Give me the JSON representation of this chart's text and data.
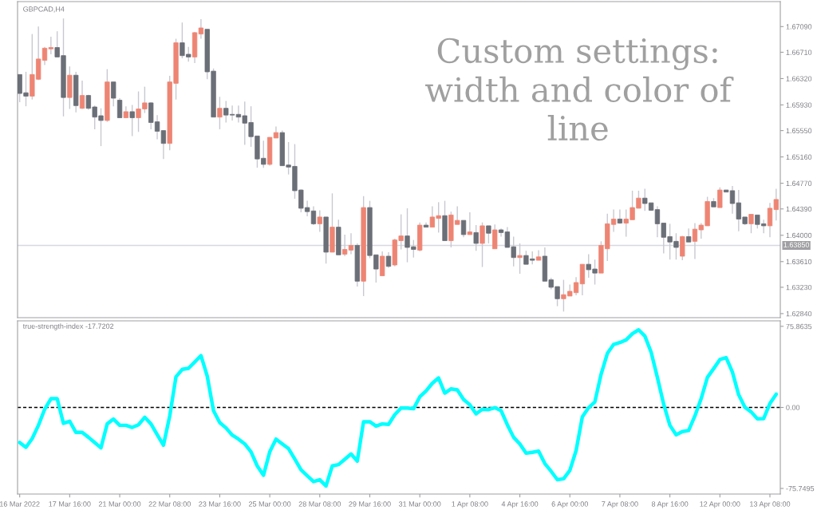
{
  "chart_data": [
    {
      "type": "candlestick",
      "tick_labels": "y",
      "annotations": [
        "GBPCAD,H4",
        "Custom settings:\nwidth and color of\nline"
      ],
      "ohlc": [
        [
          1.6638,
          1.6638,
          1.6597,
          1.661
        ],
        [
          1.6611,
          1.6642,
          1.6591,
          1.6606
        ],
        [
          1.6606,
          1.6698,
          1.6601,
          1.6638
        ],
        [
          1.6631,
          1.6709,
          1.663,
          1.6661
        ],
        [
          1.6659,
          1.6679,
          1.6652,
          1.6677
        ],
        [
          1.6676,
          1.6694,
          1.6668,
          1.6678
        ],
        [
          1.6678,
          1.6702,
          1.6664,
          1.6664
        ],
        [
          1.6666,
          1.6721,
          1.6576,
          1.6604
        ],
        [
          1.6604,
          1.665,
          1.6587,
          1.6637
        ],
        [
          1.6637,
          1.6642,
          1.6582,
          1.6592
        ],
        [
          1.6588,
          1.6629,
          1.6587,
          1.6607
        ],
        [
          1.6607,
          1.6608,
          1.6586,
          1.6588
        ],
        [
          1.659,
          1.6592,
          1.6557,
          1.6575
        ],
        [
          1.6577,
          1.6588,
          1.6532,
          1.657
        ],
        [
          1.657,
          1.6646,
          1.6568,
          1.6627
        ],
        [
          1.6627,
          1.6627,
          1.6591,
          1.6603
        ],
        [
          1.66,
          1.6603,
          1.6574,
          1.6574
        ],
        [
          1.6574,
          1.6591,
          1.6574,
          1.6583
        ],
        [
          1.6583,
          1.6593,
          1.6547,
          1.6574
        ],
        [
          1.6574,
          1.6613,
          1.6553,
          1.6587
        ],
        [
          1.6587,
          1.662,
          1.6581,
          1.6596
        ],
        [
          1.6596,
          1.6597,
          1.6557,
          1.6567
        ],
        [
          1.6568,
          1.6578,
          1.6542,
          1.6554
        ],
        [
          1.6555,
          1.6555,
          1.6513,
          1.6536
        ],
        [
          1.6536,
          1.6636,
          1.6526,
          1.6627
        ],
        [
          1.6625,
          1.6691,
          1.6601,
          1.6685
        ],
        [
          1.6685,
          1.6715,
          1.6662,
          1.6666
        ],
        [
          1.6668,
          1.6679,
          1.6657,
          1.6664
        ],
        [
          1.6664,
          1.6701,
          1.6655,
          1.67
        ],
        [
          1.6698,
          1.672,
          1.6691,
          1.6707
        ],
        [
          1.6705,
          1.6705,
          1.6631,
          1.6642
        ],
        [
          1.6643,
          1.6647,
          1.6575,
          1.6575
        ],
        [
          1.6575,
          1.6605,
          1.6557,
          1.6588
        ],
        [
          1.6588,
          1.6599,
          1.6567,
          1.6578
        ],
        [
          1.6579,
          1.6592,
          1.657,
          1.6578
        ],
        [
          1.6579,
          1.6592,
          1.6567,
          1.6575
        ],
        [
          1.6577,
          1.6598,
          1.6534,
          1.6566
        ],
        [
          1.6567,
          1.6591,
          1.6531,
          1.6546
        ],
        [
          1.6547,
          1.6547,
          1.65,
          1.6513
        ],
        [
          1.6514,
          1.654,
          1.65,
          1.6505
        ],
        [
          1.6505,
          1.6545,
          1.6503,
          1.6545
        ],
        [
          1.6544,
          1.6561,
          1.6544,
          1.6552
        ],
        [
          1.6552,
          1.6555,
          1.6503,
          1.6503
        ],
        [
          1.6504,
          1.6538,
          1.649,
          1.6501
        ],
        [
          1.6502,
          1.6535,
          1.6454,
          1.6466
        ],
        [
          1.6467,
          1.6468,
          1.6434,
          1.644
        ],
        [
          1.6441,
          1.6451,
          1.6428,
          1.6435
        ],
        [
          1.6436,
          1.6443,
          1.6415,
          1.6417
        ],
        [
          1.6417,
          1.6437,
          1.6405,
          1.6427
        ],
        [
          1.6427,
          1.6427,
          1.6358,
          1.6375
        ],
        [
          1.6375,
          1.6462,
          1.6375,
          1.6412
        ],
        [
          1.6412,
          1.6423,
          1.6371,
          1.6371
        ],
        [
          1.6372,
          1.6401,
          1.6369,
          1.6379
        ],
        [
          1.6378,
          1.6403,
          1.6372,
          1.6385
        ],
        [
          1.6385,
          1.6388,
          1.6324,
          1.6332
        ],
        [
          1.6332,
          1.6458,
          1.631,
          1.6441
        ],
        [
          1.6441,
          1.6451,
          1.6366,
          1.637
        ],
        [
          1.6371,
          1.6371,
          1.633,
          1.635
        ],
        [
          1.634,
          1.6376,
          1.634,
          1.6369
        ],
        [
          1.6369,
          1.6375,
          1.6352,
          1.6354
        ],
        [
          1.6356,
          1.6395,
          1.6354,
          1.6393
        ],
        [
          1.6392,
          1.6431,
          1.6379,
          1.6399
        ],
        [
          1.6399,
          1.644,
          1.636,
          1.6382
        ],
        [
          1.6383,
          1.6393,
          1.6367,
          1.6379
        ],
        [
          1.6378,
          1.6419,
          1.6376,
          1.6415
        ],
        [
          1.6415,
          1.6419,
          1.6412,
          1.6412
        ],
        [
          1.6412,
          1.6443,
          1.6412,
          1.6427
        ],
        [
          1.6425,
          1.6449,
          1.6404,
          1.6429
        ],
        [
          1.6429,
          1.6451,
          1.6392,
          1.6392
        ],
        [
          1.6392,
          1.6435,
          1.6382,
          1.643
        ],
        [
          1.6416,
          1.6443,
          1.6416,
          1.6422
        ],
        [
          1.6422,
          1.6422,
          1.6397,
          1.6401
        ],
        [
          1.6401,
          1.6434,
          1.6401,
          1.6405
        ],
        [
          1.6404,
          1.6415,
          1.6377,
          1.6388
        ],
        [
          1.6388,
          1.6419,
          1.6353,
          1.6414
        ],
        [
          1.6414,
          1.6414,
          1.6388,
          1.6403
        ],
        [
          1.638,
          1.6416,
          1.638,
          1.6408
        ],
        [
          1.6408,
          1.641,
          1.6398,
          1.6404
        ],
        [
          1.6405,
          1.6412,
          1.6382,
          1.6382
        ],
        [
          1.6383,
          1.6398,
          1.6354,
          1.6367
        ],
        [
          1.6367,
          1.6388,
          1.6343,
          1.637
        ],
        [
          1.637,
          1.6377,
          1.6357,
          1.6357
        ],
        [
          1.6365,
          1.6376,
          1.6357,
          1.6363
        ],
        [
          1.6363,
          1.6378,
          1.6363,
          1.6368
        ],
        [
          1.6369,
          1.6382,
          1.6332,
          1.6332
        ],
        [
          1.6334,
          1.6337,
          1.632,
          1.6323
        ],
        [
          1.6324,
          1.6324,
          1.6295,
          1.6306
        ],
        [
          1.6306,
          1.6334,
          1.6287,
          1.6312
        ],
        [
          1.631,
          1.6327,
          1.631,
          1.6317
        ],
        [
          1.6315,
          1.6338,
          1.6311,
          1.633
        ],
        [
          1.6328,
          1.6357,
          1.6311,
          1.6357
        ],
        [
          1.6357,
          1.6372,
          1.6337,
          1.6349
        ],
        [
          1.635,
          1.6364,
          1.6327,
          1.6344
        ],
        [
          1.6344,
          1.6391,
          1.6344,
          1.6385
        ],
        [
          1.638,
          1.6432,
          1.6362,
          1.6417
        ],
        [
          1.6416,
          1.6438,
          1.6405,
          1.6424
        ],
        [
          1.6424,
          1.6438,
          1.6417,
          1.6418
        ],
        [
          1.6418,
          1.6438,
          1.6398,
          1.6424
        ],
        [
          1.6423,
          1.6466,
          1.6423,
          1.6441
        ],
        [
          1.644,
          1.6466,
          1.644,
          1.6455
        ],
        [
          1.6455,
          1.6469,
          1.6436,
          1.6447
        ],
        [
          1.6448,
          1.6448,
          1.6436,
          1.6437
        ],
        [
          1.6438,
          1.6443,
          1.6397,
          1.6417
        ],
        [
          1.6418,
          1.6418,
          1.6373,
          1.6397
        ],
        [
          1.6398,
          1.6417,
          1.6364,
          1.639
        ],
        [
          1.6391,
          1.6403,
          1.6364,
          1.6382
        ],
        [
          1.6369,
          1.6399,
          1.6363,
          1.6398
        ],
        [
          1.6398,
          1.641,
          1.639,
          1.639
        ],
        [
          1.6391,
          1.6418,
          1.6365,
          1.6409
        ],
        [
          1.6408,
          1.6418,
          1.6395,
          1.6415
        ],
        [
          1.6414,
          1.6457,
          1.6414,
          1.645
        ],
        [
          1.645,
          1.6455,
          1.6442,
          1.6442
        ],
        [
          1.6441,
          1.6471,
          1.6441,
          1.6467
        ],
        [
          1.6467,
          1.6467,
          1.6464,
          1.6464
        ],
        [
          1.6466,
          1.6473,
          1.6432,
          1.6447
        ],
        [
          1.6448,
          1.6467,
          1.6406,
          1.6424
        ],
        [
          1.6427,
          1.6427,
          1.6415,
          1.6417
        ],
        [
          1.6417,
          1.6431,
          1.6403,
          1.6431
        ],
        [
          1.643,
          1.643,
          1.641,
          1.6416
        ],
        [
          1.6417,
          1.6423,
          1.6403,
          1.6414
        ],
        [
          1.6414,
          1.6448,
          1.6397,
          1.644
        ],
        [
          1.6438,
          1.6469,
          1.6422,
          1.6453
        ]
      ],
      "colors": [
        "#6b6f77",
        "#6b6f77",
        "#ee8574",
        "#ee8574",
        "#ee8574",
        "#ee8574",
        "#6b6f77",
        "#6b6f77",
        "#ee8574",
        "#6b6f77",
        "#ee8574",
        "#6b6f77",
        "#6b6f77",
        "#6b6f77",
        "#ee8574",
        "#6b6f77",
        "#6b6f77",
        "#ee8574",
        "#6b6f77",
        "#ee8574",
        "#ee8574",
        "#6b6f77",
        "#6b6f77",
        "#6b6f77",
        "#ee8574",
        "#ee8574",
        "#6b6f77",
        "#6b6f77",
        "#ee8574",
        "#ee8574",
        "#6b6f77",
        "#6b6f77",
        "#ee8574",
        "#6b6f77",
        "#6b6f77",
        "#6b6f77",
        "#6b6f77",
        "#6b6f77",
        "#6b6f77",
        "#6b6f77",
        "#ee8574",
        "#ee8574",
        "#6b6f77",
        "#6b6f77",
        "#6b6f77",
        "#6b6f77",
        "#6b6f77",
        "#6b6f77",
        "#ee8574",
        "#6b6f77",
        "#ee8574",
        "#6b6f77",
        "#ee8574",
        "#ee8574",
        "#6b6f77",
        "#ee8574",
        "#6b6f77",
        "#6b6f77",
        "#ee8574",
        "#6b6f77",
        "#ee8574",
        "#ee8574",
        "#6b6f77",
        "#6b6f77",
        "#ee8574",
        "#6b6f77",
        "#ee8574",
        "#ee8574",
        "#6b6f77",
        "#ee8574",
        "#ee8574",
        "#6b6f77",
        "#ee8574",
        "#6b6f77",
        "#ee8574",
        "#6b6f77",
        "#ee8574",
        "#6b6f77",
        "#6b6f77",
        "#6b6f77",
        "#ee8574",
        "#6b6f77",
        "#6b6f77",
        "#ee8574",
        "#6b6f77",
        "#6b6f77",
        "#6b6f77",
        "#ee8574",
        "#ee8574",
        "#ee8574",
        "#ee8574",
        "#6b6f77",
        "#6b6f77",
        "#ee8574",
        "#ee8574",
        "#ee8574",
        "#6b6f77",
        "#ee8574",
        "#ee8574",
        "#ee8574",
        "#6b6f77",
        "#6b6f77",
        "#6b6f77",
        "#6b6f77",
        "#6b6f77",
        "#6b6f77",
        "#ee8574",
        "#6b6f77",
        "#ee8574",
        "#ee8574",
        "#ee8574",
        "#6b6f77",
        "#ee8574",
        "#6b6f77",
        "#6b6f77",
        "#6b6f77",
        "#6b6f77",
        "#ee8574",
        "#6b6f77",
        "#6b6f77",
        "#ee8574",
        "#ee8574"
      ],
      "ylim": [
        1.6278,
        1.6746
      ],
      "yticks": [
        {
          "value": 1.6709,
          "label": "1.67090"
        },
        {
          "value": 1.6671,
          "label": "1.66710"
        },
        {
          "value": 1.6632,
          "label": "1.66320"
        },
        {
          "value": 1.6593,
          "label": "1.65930"
        },
        {
          "value": 1.6555,
          "label": "1.65550"
        },
        {
          "value": 1.6516,
          "label": "1.65160"
        },
        {
          "value": 1.6477,
          "label": "1.64770"
        },
        {
          "value": 1.6439,
          "label": "1.64390"
        },
        {
          "value": 1.64,
          "label": "1.64000"
        },
        {
          "value": 1.6361,
          "label": "1.63610"
        },
        {
          "value": 1.6323,
          "label": "1.63230"
        },
        {
          "value": 1.6284,
          "label": "1.62840"
        }
      ],
      "ref_lines": [
        {
          "axis": "y",
          "value": 1.6385,
          "label": "1.63850",
          "color": "#d8d8e0"
        }
      ]
    },
    {
      "type": "line",
      "annotations": [
        "true-strength-index -17.7202"
      ],
      "categories": [
        "16 Mar 2022",
        null,
        null,
        null,
        null,
        null,
        null,
        null,
        "17 Mar 16:00",
        null,
        null,
        null,
        null,
        null,
        null,
        null,
        "21 Mar 00:00",
        null,
        null,
        null,
        null,
        null,
        null,
        null,
        "22 Mar 08:00",
        null,
        null,
        null,
        null,
        null,
        null,
        null,
        "23 Mar 16:00",
        null,
        null,
        null,
        null,
        null,
        null,
        null,
        "25 Mar 00:00",
        null,
        null,
        null,
        null,
        null,
        null,
        null,
        "28 Mar 08:00",
        null,
        null,
        null,
        null,
        null,
        null,
        null,
        "29 Mar 16:00",
        null,
        null,
        null,
        null,
        null,
        null,
        null,
        "31 Mar 00:00",
        null,
        null,
        null,
        null,
        null,
        null,
        null,
        "1 Apr 08:00",
        null,
        null,
        null,
        null,
        null,
        null,
        null,
        "4 Apr 16:00",
        null,
        null,
        null,
        null,
        null,
        null,
        null,
        "6 Apr 00:00",
        null,
        null,
        null,
        null,
        null,
        null,
        null,
        "7 Apr 08:00",
        null,
        null,
        null,
        null,
        null,
        null,
        null,
        "8 Apr 16:00",
        null,
        null,
        null,
        null,
        null,
        null,
        null,
        "12 Apr 00:00",
        null,
        null,
        null,
        null,
        null,
        null,
        null,
        "13 Apr 08:00",
        null
      ],
      "series": [
        {
          "color": "#00ffff",
          "values": [
            -32.8,
            -37.3,
            -29.1,
            -16.7,
            -1.7,
            8.2,
            8.2,
            -14.9,
            -12.9,
            -23.4,
            -23.4,
            -27.9,
            -32.8,
            -37.8,
            -15.4,
            -10.9,
            -16.7,
            -16.7,
            -18.7,
            -16.2,
            -9.2,
            -15.4,
            -25.4,
            -35.3,
            -8.0,
            28.6,
            35.6,
            36.6,
            42.5,
            48.5,
            29.3,
            -3.0,
            -14.2,
            -19.1,
            -25.9,
            -29.6,
            -34.1,
            -41.5,
            -54.7,
            -63.4,
            -41.5,
            -29.6,
            -34.1,
            -38.5,
            -48.2,
            -58.4,
            -63.9,
            -69.4,
            -67.6,
            -73.4,
            -54.7,
            -53.5,
            -48.5,
            -43.5,
            -50.2,
            -13.4,
            -13.4,
            -17.4,
            -15.4,
            -15.9,
            -6.7,
            -0.5,
            -0.5,
            -1.2,
            9.9,
            15.4,
            22.6,
            27.6,
            13.4,
            17.4,
            16.4,
            7.5,
            2.5,
            -6.0,
            -1.7,
            -2.0,
            -0.2,
            -3.0,
            -16.2,
            -27.9,
            -34.1,
            -42.8,
            -42.0,
            -40.8,
            -52.5,
            -59.7,
            -67.6,
            -66.7,
            -58.9,
            -40.3,
            -8.7,
            -0.2,
            5.2,
            31.1,
            50.5,
            58.9,
            60.7,
            63.2,
            68.9,
            72.6,
            66.7,
            51.7,
            28.1,
            3.2,
            -16.7,
            -25.6,
            -22.6,
            -21.6,
            -8.0,
            8.2,
            28.1,
            36.3,
            44.8,
            46.5,
            33.1,
            11.9,
            0.2,
            -4.2,
            -10.7,
            -10.4,
            3.7,
            12.4
          ]
        }
      ],
      "ylim": [
        -81,
        81
      ],
      "yticks": [
        75.8635,
        {
          "value": 0,
          "label": "0.00"
        },
        -75.7495
      ],
      "ref_lines": [
        {
          "axis": "y",
          "value": 0,
          "color": "#000000",
          "line_style": "dashed"
        }
      ]
    }
  ]
}
